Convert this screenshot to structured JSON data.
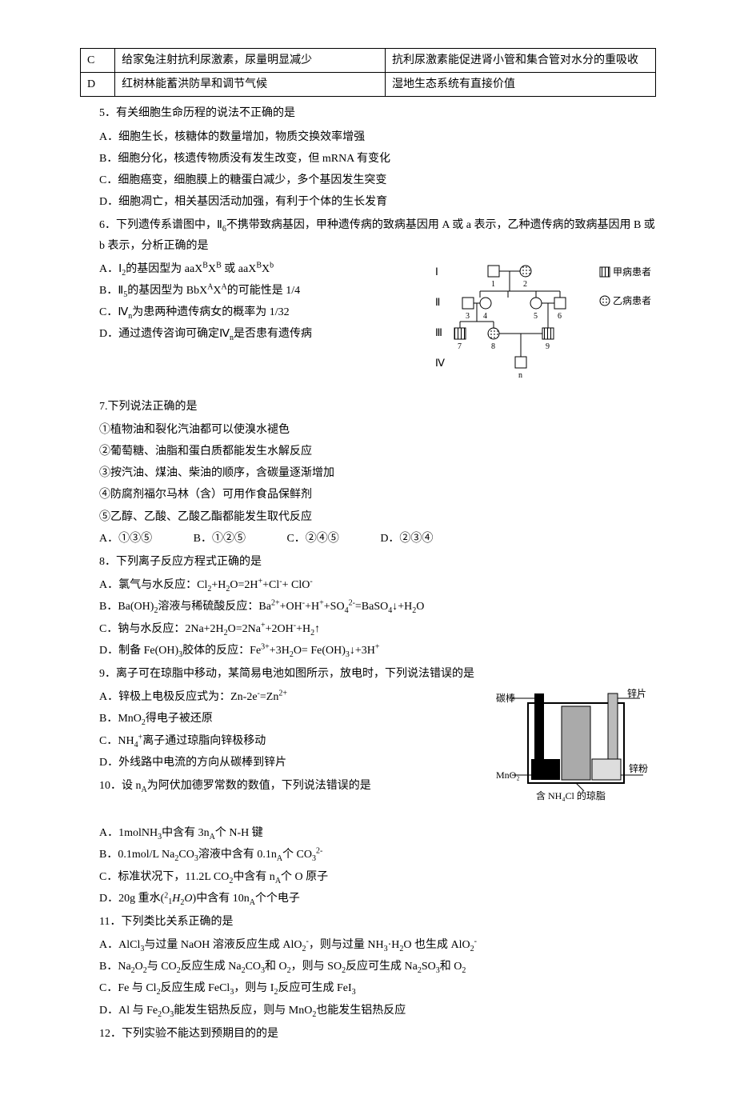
{
  "table_top": {
    "rows": [
      [
        "C",
        "给家兔注射抗利尿激素，尿量明显减少",
        "抗利尿激素能促进肾小管和集合管对水分的重吸收"
      ],
      [
        "D",
        "红树林能蓄洪防旱和调节气候",
        "湿地生态系统有直接价值"
      ]
    ],
    "col_widths": [
      "6%",
      "47%",
      "47%"
    ]
  },
  "q5": {
    "stem": "5．有关细胞生命历程的说法不正确的是",
    "opts": [
      "A．细胞生长，核糖体的数量增加，物质交换效率增强",
      "B．细胞分化，核遗传物质没有发生改变，但 mRNA 有变化",
      "C．细胞癌变，细胞膜上的糖蛋白减少，多个基因发生突变",
      "D．细胞凋亡，相关基因活动加强，有利于个体的生长发育"
    ]
  },
  "q6": {
    "stem_pre": "6．下列遗传系谱图中，Ⅱ",
    "stem_sub": "6",
    "stem_post": "不携带致病基因，甲种遗传病的致病基因用 A 或 a 表示，乙种遗传病的致病基因用 B 或 b 表示，分析正确的是",
    "optA": {
      "pre": "A．Ⅰ",
      "sub": "2",
      "post": "的基因型为 aaX",
      "sup1": "B",
      "mid1": "X",
      "sup2": "B",
      "mid2": " 或 aaX",
      "sup3": "B",
      "mid3": "X",
      "sup4": "b"
    },
    "optB": {
      "pre": "B．Ⅱ",
      "sub": "5",
      "post": "的基因型为 BbX",
      "sup1": "A",
      "mid1": "X",
      "sup2": "A",
      "tail": "的可能性是 1/4"
    },
    "optC": {
      "pre": "C．Ⅳ",
      "sub": "n",
      "post": "为患两种遗传病女的概率为 1/32"
    },
    "optD": {
      "pre": "D．通过遗传咨询可确定Ⅳ",
      "sub": "n",
      "post": "是否患有遗传病"
    },
    "pedigree": {
      "row_labels": [
        "Ⅰ",
        "Ⅱ",
        "Ⅲ",
        "Ⅳ"
      ],
      "legend": [
        {
          "symbol": "hatched-square",
          "label": "甲病患者"
        },
        {
          "symbol": "dotted-circle",
          "label": "乙病患者"
        }
      ],
      "gen1": [
        {
          "shape": "square",
          "fill": "none",
          "num": "1"
        },
        {
          "shape": "circle",
          "fill": "dotted",
          "num": "2"
        }
      ],
      "gen2": [
        {
          "shape": "square",
          "fill": "none",
          "num": "3"
        },
        {
          "shape": "circle",
          "fill": "none",
          "num": "4"
        },
        {
          "shape": "circle",
          "fill": "none",
          "num": "5"
        },
        {
          "shape": "square",
          "fill": "none",
          "num": "6"
        }
      ],
      "gen3": [
        {
          "shape": "square",
          "fill": "hatched",
          "num": "7"
        },
        {
          "shape": "circle",
          "fill": "dotted",
          "num": "8"
        },
        {
          "shape": "square",
          "fill": "hatched",
          "num": "9"
        }
      ],
      "gen4": [
        {
          "shape": "square",
          "fill": "none",
          "num": "n"
        }
      ],
      "colors": {
        "line": "#000000",
        "hatch": "#000000",
        "dot": "#555555"
      },
      "symbol_size": 14
    }
  },
  "q7": {
    "stem": "7.下列说法正确的是",
    "items": [
      "①植物油和裂化汽油都可以使溴水褪色",
      "②葡萄糖、油脂和蛋白质都能发生水解反应",
      "③按汽油、煤油、柴油的顺序，含碳量逐渐增加",
      "④防腐剂福尔马林（含）可用作食品保鲜剂",
      "⑤乙醇、乙酸、乙酸乙酯都能发生取代反应"
    ],
    "opts": [
      "A．①③⑤",
      "B．①②⑤",
      "C．②④⑤",
      "D．②③④"
    ]
  },
  "q8": {
    "stem": "8．下列离子反应方程式正确的是",
    "opts_html": [
      "A．氯气与水反应：Cl<sub>2</sub>+H<sub>2</sub>O=2H<sup>+</sup>+Cl<sup>-</sup>+ ClO<sup>-</sup>",
      "B．Ba(OH)<sub>2</sub>溶液与稀硫酸反应：Ba<sup>2+</sup>+OH<sup>-</sup>+H<sup>+</sup>+SO<sub>4</sub><sup>2-</sup>=BaSO<sub>4</sub>↓+H<sub>2</sub>O",
      "C．钠与水反应：2Na+2H<sub>2</sub>O=2Na<sup>+</sup>+2OH<sup>-</sup>+H<sub>2</sub>↑",
      "D．制备 Fe(OH)<sub>3</sub>胶体的反应：Fe<sup>3+</sup>+3H<sub>2</sub>O= Fe(OH)<sub>3</sub>↓+3H<sup>+</sup>"
    ]
  },
  "q9": {
    "stem": "9．离子可在琼脂中移动，某简易电池如图所示，放电时，下列说法错误的是",
    "opts_html": [
      "A．锌极上电极反应式为：Zn-2e<sup>-</sup>=Zn<sup>2+</sup>",
      "B．MnO<sub>2</sub>得电子被还原",
      "C．NH<sub>4</sub><sup>+</sup>离子通过琼脂向锌极移动",
      "D．外线路中电流的方向从碳棒到锌片"
    ],
    "cell_diagram": {
      "labels": {
        "carbon_rod": "碳棒",
        "zinc_sheet": "锌片",
        "mno2": "MnO₂",
        "zinc_powder": "锌粉",
        "gel": "含 NH₄Cl 的琼脂"
      },
      "colors": {
        "outer": "#000000",
        "carbon": "#000000",
        "zinc": "#bbbbbb",
        "gel": "#888888",
        "powder_fill": "#dddddd"
      },
      "width": 170,
      "height": 140
    }
  },
  "q10": {
    "stem_pre": "10．设 n",
    "stem_sub": "A",
    "stem_post": "为阿伏加德罗常数的数值，下列说法错误的是",
    "opts_html": [
      "A．1molNH<sub>3</sub>中含有 3n<sub>A</sub>个 N-H 键",
      "B．0.1mol/L Na<sub>2</sub>CO<sub>3</sub>溶液中含有 0.1n<sub>A</sub>个 CO<sub>3</sub><sup>2-</sup>",
      "C．标准状况下，11.2L CO<sub>2</sub>中含有 n<sub>A</sub>个 O 原子",
      "D．20g 重水(<span style='font-size:10px;'><sup>2</sup><sub>1</sub></span><i>H</i><sub>2</sub><i>O</i>)中含有 10n<sub>A</sub>个个电子"
    ]
  },
  "q11": {
    "stem": "11．下列类比关系正确的是",
    "opts_html": [
      "A．AlCl<sub>3</sub>与过量 NaOH 溶液反应生成 AlO<sub>2</sub><sup>-</sup>，则与过量 NH<sub>3</sub>·H<sub>2</sub>O 也生成 AlO<sub>2</sub><sup>-</sup>",
      "B．Na<sub>2</sub>O<sub>2</sub>与 CO<sub>2</sub>反应生成 Na<sub>2</sub>CO<sub>3</sub>和 O<sub>2</sub>，则与 SO<sub>2</sub>反应可生成 Na<sub>2</sub>SO<sub>3</sub>和 O<sub>2</sub>",
      "C．Fe 与 Cl<sub>2</sub>反应生成 FeCl<sub>3</sub>，则与 I<sub>2</sub>反应可生成 FeI<sub>3</sub>",
      "D．Al 与 Fe<sub>2</sub>O<sub>3</sub>能发生铝热反应，则与 MnO<sub>2</sub>也能发生铝热反应"
    ]
  },
  "q12": {
    "stem": "12．下列实验不能达到预期目的的是"
  }
}
